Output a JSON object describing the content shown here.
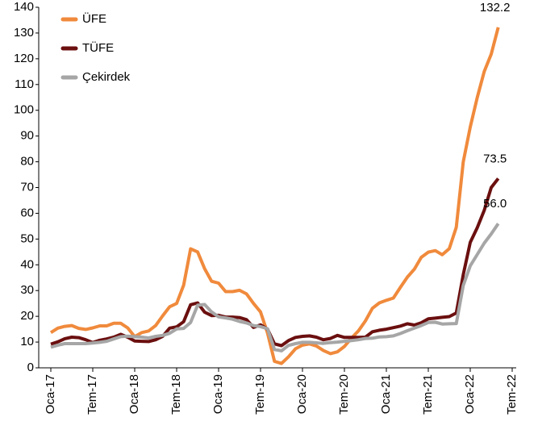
{
  "chart_data": {
    "type": "line",
    "categories": [
      "Oca-17",
      null,
      null,
      null,
      null,
      null,
      "Tem-17",
      null,
      null,
      null,
      null,
      null,
      "Oca-18",
      null,
      null,
      null,
      null,
      null,
      "Tem-18",
      null,
      null,
      null,
      null,
      null,
      "Oca-19",
      null,
      null,
      null,
      null,
      null,
      "Tem-19",
      null,
      null,
      null,
      null,
      null,
      "Oca-20",
      null,
      null,
      null,
      null,
      null,
      "Tem-20",
      null,
      null,
      null,
      null,
      null,
      "Oca-21",
      null,
      null,
      null,
      null,
      null,
      "Tem-21",
      null,
      null,
      null,
      null,
      null,
      "Oca-22",
      null,
      null,
      null,
      null,
      null,
      "Tem-22"
    ],
    "series": [
      {
        "name": "ÜFE",
        "color": "#f08a3c",
        "values": [
          13.7,
          15.4,
          16.1,
          16.4,
          15.3,
          14.9,
          15.5,
          16.3,
          16.3,
          17.3,
          17.3,
          15.5,
          12.1,
          13.7,
          14.3,
          16.4,
          20.2,
          23.7,
          25.0,
          32.1,
          46.2,
          45.0,
          38.5,
          33.6,
          32.9,
          29.6,
          29.6,
          30.1,
          28.7,
          25.0,
          21.7,
          13.5,
          2.5,
          1.7,
          4.3,
          7.4,
          8.8,
          9.3,
          8.5,
          6.7,
          5.5,
          6.2,
          8.3,
          11.5,
          14.3,
          18.2,
          23.1,
          25.2,
          26.2,
          27.1,
          31.2,
          35.2,
          38.3,
          42.9,
          44.9,
          45.5,
          43.9,
          46.3,
          54.6,
          79.9,
          93.5,
          105.0,
          115.0,
          121.8,
          132.2,
          null,
          null
        ],
        "value_labels": [
          null,
          null,
          null,
          null,
          null,
          null,
          null,
          null,
          null,
          null,
          null,
          null,
          null,
          null,
          null,
          null,
          null,
          null,
          null,
          null,
          null,
          null,
          null,
          null,
          null,
          null,
          null,
          null,
          null,
          null,
          null,
          null,
          null,
          null,
          null,
          null,
          null,
          null,
          null,
          null,
          null,
          null,
          null,
          null,
          null,
          null,
          null,
          null,
          null,
          null,
          null,
          null,
          null,
          null,
          null,
          null,
          null,
          null,
          null,
          null,
          null,
          null,
          null,
          null,
          "132.2",
          null,
          null
        ]
      },
      {
        "name": "TÜFE",
        "color": "#6b0f0f",
        "values": [
          9.2,
          10.1,
          11.3,
          11.9,
          11.7,
          10.9,
          9.8,
          10.7,
          11.2,
          11.9,
          13.0,
          11.9,
          10.4,
          10.3,
          10.2,
          10.9,
          12.2,
          15.4,
          15.9,
          17.9,
          24.5,
          25.2,
          21.6,
          20.3,
          20.4,
          19.7,
          19.7,
          19.5,
          18.7,
          15.7,
          16.7,
          15.0,
          9.3,
          8.6,
          10.6,
          11.8,
          12.2,
          12.4,
          11.9,
          10.9,
          11.4,
          12.6,
          11.8,
          11.8,
          11.8,
          11.9,
          14.0,
          14.6,
          15.0,
          15.6,
          16.2,
          17.1,
          16.6,
          17.5,
          19.0,
          19.3,
          19.6,
          19.9,
          21.3,
          36.1,
          48.7,
          54.4,
          61.1,
          70.0,
          73.5,
          null,
          null
        ],
        "value_labels": [
          null,
          null,
          null,
          null,
          null,
          null,
          null,
          null,
          null,
          null,
          null,
          null,
          null,
          null,
          null,
          null,
          null,
          null,
          null,
          null,
          null,
          null,
          null,
          null,
          null,
          null,
          null,
          null,
          null,
          null,
          null,
          null,
          null,
          null,
          null,
          null,
          null,
          null,
          null,
          null,
          null,
          null,
          null,
          null,
          null,
          null,
          null,
          null,
          null,
          null,
          null,
          null,
          null,
          null,
          null,
          null,
          null,
          null,
          null,
          null,
          null,
          null,
          null,
          null,
          "73.5",
          null,
          null
        ]
      },
      {
        "name": "Çekirdek",
        "color": "#a6a6a6",
        "values": [
          8.0,
          8.8,
          9.4,
          9.4,
          9.4,
          9.4,
          9.6,
          9.9,
          10.3,
          11.2,
          12.1,
          12.3,
          12.1,
          11.9,
          11.6,
          12.2,
          12.6,
          13.4,
          15.1,
          15.3,
          17.6,
          24.3,
          24.6,
          21.7,
          19.8,
          19.4,
          18.9,
          18.0,
          17.4,
          16.4,
          16.0,
          15.2,
          7.1,
          6.6,
          8.7,
          9.4,
          9.9,
          9.9,
          9.7,
          9.5,
          9.8,
          10.0,
          10.3,
          10.6,
          10.9,
          11.4,
          11.5,
          12.0,
          12.1,
          12.4,
          13.3,
          14.4,
          15.4,
          16.4,
          17.6,
          17.7,
          17.0,
          17.1,
          17.2,
          31.9,
          39.6,
          44.0,
          48.4,
          52.0,
          56.0,
          null,
          null
        ],
        "value_labels": [
          null,
          null,
          null,
          null,
          null,
          null,
          null,
          null,
          null,
          null,
          null,
          null,
          null,
          null,
          null,
          null,
          null,
          null,
          null,
          null,
          null,
          null,
          null,
          null,
          null,
          null,
          null,
          null,
          null,
          null,
          null,
          null,
          null,
          null,
          null,
          null,
          null,
          null,
          null,
          null,
          null,
          null,
          null,
          null,
          null,
          null,
          null,
          null,
          null,
          null,
          null,
          null,
          null,
          null,
          null,
          null,
          null,
          null,
          null,
          null,
          null,
          null,
          null,
          null,
          "56.0",
          null,
          null
        ]
      }
    ],
    "ylim": [
      0,
      140
    ],
    "yticks": [
      0,
      10,
      20,
      30,
      40,
      50,
      60,
      70,
      80,
      90,
      100,
      110,
      120,
      130,
      140
    ],
    "grid": false,
    "legend": "top-left"
  }
}
